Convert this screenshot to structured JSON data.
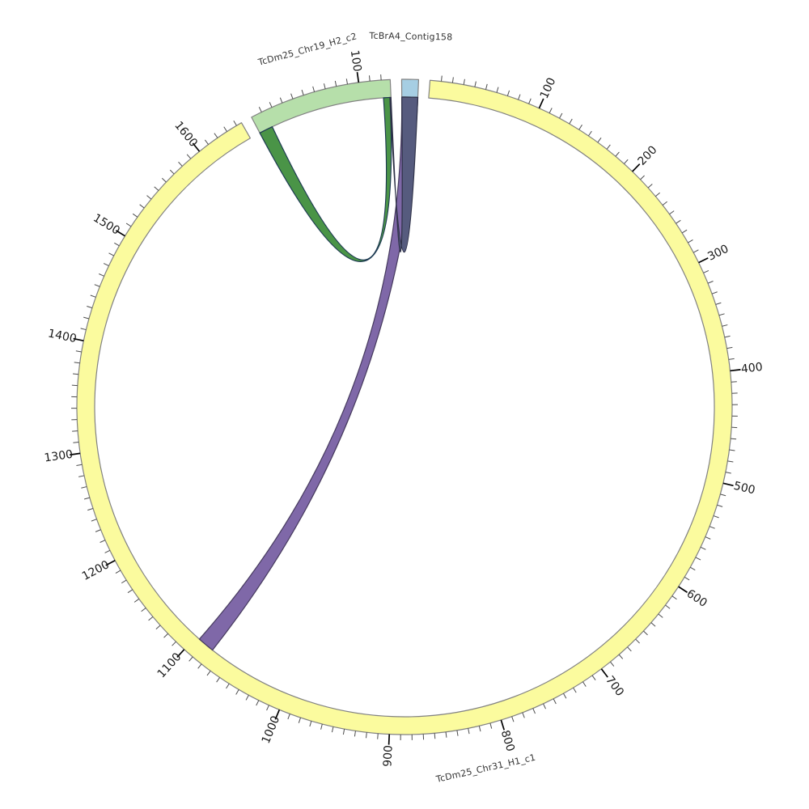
{
  "figure": {
    "background": "#ffffff"
  },
  "chart_data": {
    "type": "circos-synteny",
    "title": "",
    "legend": null,
    "layout_hints": {
      "start_angle_deg": 269.5,
      "gap_deg": 2.0,
      "minor_tick_interval": 10,
      "major_tick_interval": 100,
      "tick_labels_radial": true,
      "segment_names_tangential": true
    },
    "segments": [
      {
        "name": "TcBrA4_Contig158",
        "length": 15,
        "color": "#a6cee3",
        "edge_color": "#828282",
        "ticks": false,
        "major_tick_labels": []
      },
      {
        "name": "TcDm25_Chr31_H1_c1",
        "length": 1645,
        "color": "#fbfb9e",
        "edge_color": "#828282",
        "ticks": true,
        "major_tick_labels": [
          100,
          200,
          300,
          400,
          500,
          600,
          700,
          800,
          900,
          1000,
          1100,
          1200,
          1300,
          1400,
          1500,
          1600
        ]
      },
      {
        "name": "TcDm25_Chr19_H2_c2",
        "length": 128,
        "color": "#b6dfaa",
        "edge_color": "#828282",
        "ticks": true,
        "major_tick_labels": [
          100
        ]
      }
    ],
    "links": [
      {
        "id": "link-chr19-self-loop",
        "segment_a": "TcDm25_Chr19_H2_c2",
        "a_start": 0,
        "a_end": 13,
        "segment_b": "TcDm25_Chr19_H2_c2",
        "b_start": 121,
        "b_end": 127,
        "color": "#4a9447",
        "stroke": "#1d3a52"
      },
      {
        "id": "link-contig158-to-chr31",
        "segment_a": "TcBrA4_Contig158",
        "a_start": 0,
        "a_end": 15,
        "segment_b": "TcDm25_Chr31_H1_c1",
        "b_start": 1080,
        "b_end": 1096,
        "color": "#7f68a8",
        "stroke": "#463a5e"
      },
      {
        "id": "link-contig158-to-chr19-end",
        "segment_a": "TcBrA4_Contig158",
        "a_start": 0,
        "a_end": 15,
        "segment_b": "TcDm25_Chr19_H2_c2",
        "b_start": 127,
        "b_end": 128,
        "color": "#565b7e",
        "stroke": "#2e3147"
      }
    ]
  }
}
